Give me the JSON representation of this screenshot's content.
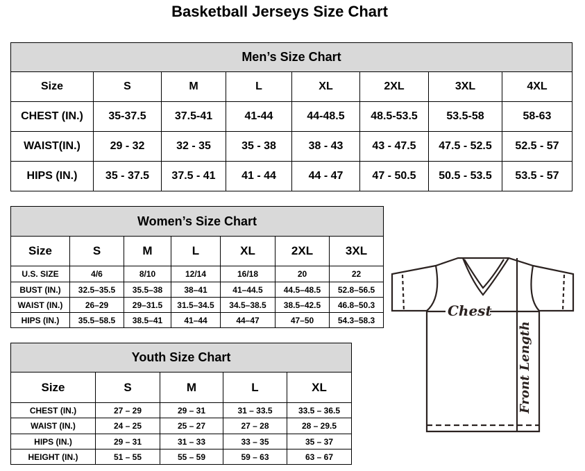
{
  "title": "Basketball Jerseys Size Chart",
  "men": {
    "caption": "Men’s Size Chart",
    "header": [
      "Size",
      "S",
      "M",
      "L",
      "XL",
      "2XL",
      "3XL",
      "4XL"
    ],
    "rows": [
      [
        "CHEST (IN.)",
        "35-37.5",
        "37.5-41",
        "41-44",
        "44-48.5",
        "48.5-53.5",
        "53.5-58",
        "58-63"
      ],
      [
        "WAIST(IN.)",
        "29 - 32",
        "32 - 35",
        "35 - 38",
        "38 - 43",
        "43 - 47.5",
        "47.5 - 52.5",
        "52.5 - 57"
      ],
      [
        "HIPS (IN.)",
        "35 - 37.5",
        "37.5 - 41",
        "41 - 44",
        "44 - 47",
        "47 - 50.5",
        "50.5 - 53.5",
        "53.5 - 57"
      ]
    ]
  },
  "women": {
    "caption": "Women’s Size Chart",
    "header": [
      "Size",
      "S",
      "M",
      "L",
      "XL",
      "2XL",
      "3XL"
    ],
    "rows": [
      [
        "U.S.  SIZE",
        "4/6",
        "8/10",
        "12/14",
        "16/18",
        "20",
        "22"
      ],
      [
        "BUST  (IN.)",
        "32.5–35.5",
        "35.5–38",
        "38–41",
        "41–44.5",
        "44.5–48.5",
        "52.8–56.5"
      ],
      [
        "WAIST  (IN.)",
        "26–29",
        "29–31.5",
        "31.5–34.5",
        "34.5–38.5",
        "38.5–42.5",
        "46.8–50.3"
      ],
      [
        "HIPS  (IN.)",
        "35.5–58.5",
        "38.5–41",
        "41–44",
        "44–47",
        "47–50",
        "54.3–58.3"
      ]
    ]
  },
  "youth": {
    "caption": "Youth Size Chart",
    "header": [
      "Size",
      "S",
      "M",
      "L",
      "XL"
    ],
    "rows": [
      [
        "CHEST  (IN.)",
        "27  –  29",
        "29  –  31",
        "31  –  33.5",
        "33.5  –  36.5"
      ],
      [
        "WAIST  (IN.)",
        "24  –  25",
        "25  –  27",
        "27  –  28",
        "28  –  29.5"
      ],
      [
        "HIPS  (IN.)",
        "29  –  31",
        "31  –  33",
        "33  –  35",
        "35  –  37"
      ],
      [
        "HEIGHT  (IN.)",
        "51  –  55",
        "55  –  59",
        "59  –  63",
        "63  –  67"
      ]
    ]
  },
  "diagram": {
    "chest_label": "Chest",
    "length_label": "Front Length",
    "line_color": "#2b2220"
  }
}
